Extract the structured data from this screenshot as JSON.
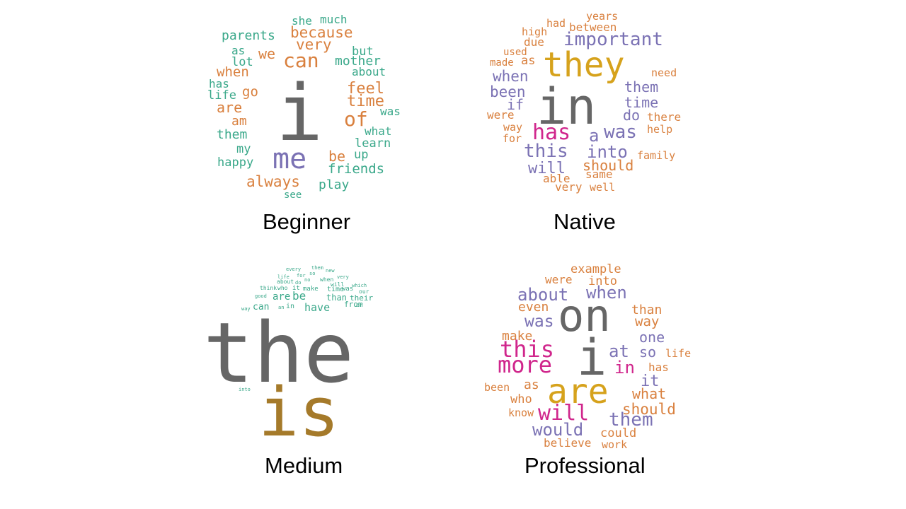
{
  "colors": {
    "teal": "#3aa88a",
    "orange": "#d9803e",
    "gray": "#666666",
    "purple": "#7b72b4",
    "gold": "#d6a21c",
    "magenta": "#d0268c",
    "brown": "#a57a2a"
  },
  "panels": {
    "beginner": {
      "label": "Beginner",
      "words": [
        {
          "text": "she",
          "color": "teal"
        },
        {
          "text": "much",
          "color": "teal"
        },
        {
          "text": "parents",
          "color": "teal"
        },
        {
          "text": "because",
          "color": "orange"
        },
        {
          "text": "very",
          "color": "orange"
        },
        {
          "text": "as",
          "color": "teal"
        },
        {
          "text": "we",
          "color": "orange"
        },
        {
          "text": "can",
          "color": "orange"
        },
        {
          "text": "but",
          "color": "teal"
        },
        {
          "text": "lot",
          "color": "teal"
        },
        {
          "text": "mother",
          "color": "teal"
        },
        {
          "text": "when",
          "color": "orange"
        },
        {
          "text": "about",
          "color": "teal"
        },
        {
          "text": "has",
          "color": "teal"
        },
        {
          "text": "life",
          "color": "teal"
        },
        {
          "text": "go",
          "color": "orange"
        },
        {
          "text": "feel",
          "color": "orange"
        },
        {
          "text": "are",
          "color": "orange"
        },
        {
          "text": "time",
          "color": "orange"
        },
        {
          "text": "am",
          "color": "orange"
        },
        {
          "text": "was",
          "color": "teal"
        },
        {
          "text": "of",
          "color": "orange"
        },
        {
          "text": "i",
          "color": "gray"
        },
        {
          "text": "them",
          "color": "teal"
        },
        {
          "text": "what",
          "color": "teal"
        },
        {
          "text": "my",
          "color": "teal"
        },
        {
          "text": "learn",
          "color": "teal"
        },
        {
          "text": "up",
          "color": "teal"
        },
        {
          "text": "me",
          "color": "purple"
        },
        {
          "text": "be",
          "color": "orange"
        },
        {
          "text": "happy",
          "color": "teal"
        },
        {
          "text": "friends",
          "color": "teal"
        },
        {
          "text": "always",
          "color": "orange"
        },
        {
          "text": "play",
          "color": "teal"
        },
        {
          "text": "see",
          "color": "teal"
        }
      ]
    },
    "native": {
      "label": "Native",
      "words": [
        {
          "text": "years",
          "color": "orange"
        },
        {
          "text": "had",
          "color": "orange"
        },
        {
          "text": "between",
          "color": "orange"
        },
        {
          "text": "high",
          "color": "orange"
        },
        {
          "text": "important",
          "color": "purple"
        },
        {
          "text": "due",
          "color": "orange"
        },
        {
          "text": "used",
          "color": "orange"
        },
        {
          "text": "they",
          "color": "gold"
        },
        {
          "text": "made",
          "color": "orange"
        },
        {
          "text": "as",
          "color": "orange"
        },
        {
          "text": "need",
          "color": "orange"
        },
        {
          "text": "when",
          "color": "purple"
        },
        {
          "text": "them",
          "color": "purple"
        },
        {
          "text": "been",
          "color": "purple"
        },
        {
          "text": "in",
          "color": "gray"
        },
        {
          "text": "time",
          "color": "purple"
        },
        {
          "text": "if",
          "color": "purple"
        },
        {
          "text": "were",
          "color": "orange"
        },
        {
          "text": "do",
          "color": "purple"
        },
        {
          "text": "there",
          "color": "orange"
        },
        {
          "text": "way",
          "color": "orange"
        },
        {
          "text": "has",
          "color": "magenta"
        },
        {
          "text": "was",
          "color": "purple"
        },
        {
          "text": "help",
          "color": "orange"
        },
        {
          "text": "for",
          "color": "orange"
        },
        {
          "text": "a",
          "color": "purple"
        },
        {
          "text": "this",
          "color": "purple"
        },
        {
          "text": "into",
          "color": "purple"
        },
        {
          "text": "family",
          "color": "orange"
        },
        {
          "text": "should",
          "color": "orange"
        },
        {
          "text": "will",
          "color": "purple"
        },
        {
          "text": "same",
          "color": "orange"
        },
        {
          "text": "able",
          "color": "orange"
        },
        {
          "text": "very",
          "color": "orange"
        },
        {
          "text": "well",
          "color": "orange"
        }
      ]
    },
    "medium": {
      "label": "Medium",
      "words": [
        {
          "text": "every",
          "color": "teal"
        },
        {
          "text": "them",
          "color": "teal"
        },
        {
          "text": "new",
          "color": "teal"
        },
        {
          "text": "life",
          "color": "teal"
        },
        {
          "text": "for",
          "color": "teal"
        },
        {
          "text": "so",
          "color": "teal"
        },
        {
          "text": "very",
          "color": "teal"
        },
        {
          "text": "about",
          "color": "teal"
        },
        {
          "text": "do",
          "color": "teal"
        },
        {
          "text": "no",
          "color": "teal"
        },
        {
          "text": "when",
          "color": "teal"
        },
        {
          "text": "will",
          "color": "teal"
        },
        {
          "text": "which",
          "color": "teal"
        },
        {
          "text": "think",
          "color": "teal"
        },
        {
          "text": "who",
          "color": "teal"
        },
        {
          "text": "it",
          "color": "teal"
        },
        {
          "text": "make",
          "color": "teal"
        },
        {
          "text": "time",
          "color": "teal"
        },
        {
          "text": "was",
          "color": "teal"
        },
        {
          "text": "our",
          "color": "teal"
        },
        {
          "text": "good",
          "color": "teal"
        },
        {
          "text": "are",
          "color": "teal"
        },
        {
          "text": "be",
          "color": "teal"
        },
        {
          "text": "than",
          "color": "teal"
        },
        {
          "text": "their",
          "color": "teal"
        },
        {
          "text": "way",
          "color": "teal"
        },
        {
          "text": "can",
          "color": "teal"
        },
        {
          "text": "an",
          "color": "teal"
        },
        {
          "text": "in",
          "color": "teal"
        },
        {
          "text": "have",
          "color": "teal"
        },
        {
          "text": "from",
          "color": "teal"
        },
        {
          "text": "or",
          "color": "teal"
        },
        {
          "text": "the",
          "color": "gray"
        },
        {
          "text": "into",
          "color": "teal"
        },
        {
          "text": "is",
          "color": "brown"
        }
      ]
    },
    "professional": {
      "label": "Professional",
      "words": [
        {
          "text": "example",
          "color": "orange"
        },
        {
          "text": "were",
          "color": "orange"
        },
        {
          "text": "into",
          "color": "orange"
        },
        {
          "text": "about",
          "color": "purple"
        },
        {
          "text": "when",
          "color": "purple"
        },
        {
          "text": "even",
          "color": "orange"
        },
        {
          "text": "on",
          "color": "gray"
        },
        {
          "text": "than",
          "color": "orange"
        },
        {
          "text": "was",
          "color": "purple"
        },
        {
          "text": "way",
          "color": "orange"
        },
        {
          "text": "make",
          "color": "orange"
        },
        {
          "text": "one",
          "color": "purple"
        },
        {
          "text": "this",
          "color": "magenta"
        },
        {
          "text": "at",
          "color": "purple"
        },
        {
          "text": "so",
          "color": "purple"
        },
        {
          "text": "life",
          "color": "orange"
        },
        {
          "text": "more",
          "color": "magenta"
        },
        {
          "text": "i",
          "color": "gray"
        },
        {
          "text": "in",
          "color": "magenta"
        },
        {
          "text": "has",
          "color": "orange"
        },
        {
          "text": "it",
          "color": "purple"
        },
        {
          "text": "been",
          "color": "orange"
        },
        {
          "text": "as",
          "color": "orange"
        },
        {
          "text": "are",
          "color": "gold"
        },
        {
          "text": "what",
          "color": "orange"
        },
        {
          "text": "who",
          "color": "orange"
        },
        {
          "text": "should",
          "color": "orange"
        },
        {
          "text": "know",
          "color": "orange"
        },
        {
          "text": "will",
          "color": "magenta"
        },
        {
          "text": "them",
          "color": "purple"
        },
        {
          "text": "would",
          "color": "purple"
        },
        {
          "text": "could",
          "color": "orange"
        },
        {
          "text": "believe",
          "color": "orange"
        },
        {
          "text": "work",
          "color": "orange"
        }
      ]
    }
  }
}
